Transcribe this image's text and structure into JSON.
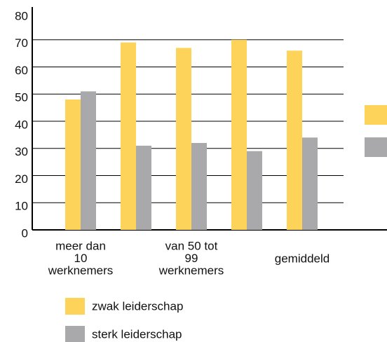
{
  "chart_data": {
    "type": "bar",
    "categories": [
      "meer dan\n10\nwerknemers",
      null,
      "van 50 tot\n99\nwerknemers",
      null,
      "gemiddeld"
    ],
    "series": [
      {
        "name": "zwak leiderschap",
        "color": "#fdd35a",
        "values": [
          48,
          69,
          67,
          70,
          66
        ]
      },
      {
        "name": "sterk leiderschap",
        "color": "#a9a9ab",
        "values": [
          51,
          31,
          32,
          29,
          34
        ]
      }
    ],
    "ylim": [
      0,
      80
    ],
    "yticks": [
      0,
      10,
      20,
      30,
      40,
      50,
      60,
      70,
      80
    ],
    "grid": true
  }
}
